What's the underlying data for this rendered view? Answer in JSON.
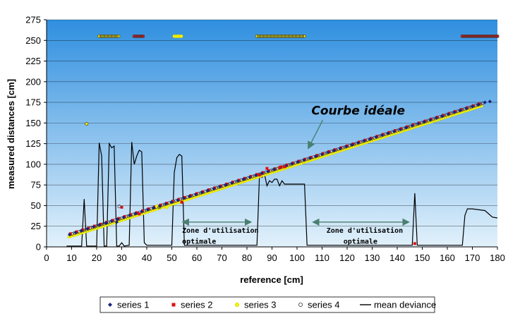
{
  "chart_data": {
    "type": "scatter",
    "title": "",
    "xlabel": "reference [cm]",
    "ylabel": "measured distances [cm]",
    "xlim": [
      0,
      180
    ],
    "ylim": [
      0,
      275
    ],
    "x_ticks": [
      0,
      10,
      20,
      30,
      40,
      50,
      60,
      70,
      80,
      90,
      100,
      110,
      120,
      130,
      140,
      150,
      160,
      170,
      180
    ],
    "y_ticks": [
      0,
      25,
      50,
      75,
      100,
      125,
      150,
      175,
      200,
      225,
      250,
      275
    ],
    "grid": "horizontal",
    "legend_position": "bottom",
    "colors": {
      "plot_bg_top": "#2f8fdf",
      "plot_bg_bottom": "#e2f1fb",
      "series1": "#1a237e",
      "series2": "#e01010",
      "series3": "#f2f20a",
      "series4": "#3a3a3a",
      "mean": "#000000",
      "arrow": "#4a7f70"
    },
    "ideal_line": {
      "x": [
        9,
        175
      ],
      "y": [
        14,
        174
      ]
    },
    "saturated_value": 255,
    "saturated_ranges": [
      {
        "x": [
          21,
          29
        ],
        "series": [
          "series 1",
          "series 3",
          "series 4"
        ]
      },
      {
        "x": [
          35,
          39
        ],
        "series": [
          "series 2",
          "series 4"
        ]
      },
      {
        "x": [
          51,
          54
        ],
        "series": [
          "series 2",
          "series 3"
        ]
      },
      {
        "x": [
          84,
          103
        ],
        "series": [
          "series 1",
          "series 3",
          "series 4"
        ]
      },
      {
        "x": [
          166,
          180
        ],
        "series": [
          "series 2",
          "series 4"
        ]
      }
    ],
    "series": [
      {
        "name": "series 1",
        "marker": "diamond",
        "points": [
          [
            24,
            29
          ],
          [
            28,
            30
          ],
          [
            175,
            175
          ],
          [
            177,
            176
          ]
        ]
      },
      {
        "name": "series 2",
        "marker": "square",
        "points": [
          [
            30,
            48
          ],
          [
            37,
            40
          ],
          [
            54,
            54
          ],
          [
            85,
            87
          ],
          [
            88,
            95
          ],
          [
            93,
            96
          ],
          [
            95,
            97
          ],
          [
            147,
            4
          ]
        ]
      },
      {
        "name": "series 3",
        "marker": "circle",
        "points": [
          [
            16,
            149
          ],
          [
            44,
            49
          ],
          [
            48,
            48
          ]
        ]
      },
      {
        "name": "series 4",
        "marker": "circle",
        "points": [
          [
            16,
            149
          ],
          [
            29,
            49
          ],
          [
            45,
            48
          ],
          [
            91,
            94
          ]
        ]
      },
      {
        "name": "mean deviance",
        "type": "line",
        "x": [
          8,
          14,
          15,
          16,
          17,
          20,
          21,
          22,
          23,
          24,
          25,
          26,
          27,
          28,
          29,
          30,
          31,
          33,
          34,
          35,
          36,
          37,
          38,
          39,
          40,
          41,
          46,
          47,
          48,
          49,
          50,
          51,
          52,
          53,
          54,
          55,
          56,
          60,
          70,
          80,
          84,
          85,
          86,
          87,
          88,
          89,
          90,
          91,
          92,
          93,
          94,
          95,
          96,
          98,
          100,
          103,
          104,
          106,
          146,
          147,
          148,
          149,
          150,
          151,
          166,
          167,
          168,
          170,
          175,
          178,
          180
        ],
        "y": [
          1,
          1,
          58,
          1,
          1,
          1,
          126,
          110,
          1,
          1,
          125,
          120,
          122,
          1,
          1,
          5,
          1,
          2,
          127,
          100,
          110,
          117,
          115,
          5,
          2,
          2,
          2,
          2,
          2,
          2,
          2,
          90,
          108,
          112,
          110,
          2,
          2,
          2,
          2,
          2,
          2,
          88,
          84,
          88,
          74,
          80,
          78,
          82,
          82,
          74,
          80,
          76,
          76,
          76,
          76,
          76,
          2,
          2,
          2,
          65,
          2,
          2,
          2,
          2,
          2,
          38,
          46,
          46,
          44,
          36,
          35
        ]
      }
    ],
    "legend": [
      "series 1",
      "series 2",
      "series 3",
      "series 4",
      "mean deviance"
    ],
    "annotations": [
      {
        "text": "Courbe idéale",
        "x": 108,
        "y": 162
      },
      {
        "text": "Zone d'utilisation optimale",
        "x": 70,
        "y": 18,
        "range": [
          53,
          83
        ]
      },
      {
        "text": "Zone d'utilisation optimale",
        "x": 126,
        "y": 18,
        "range": [
          105,
          146
        ]
      }
    ]
  }
}
